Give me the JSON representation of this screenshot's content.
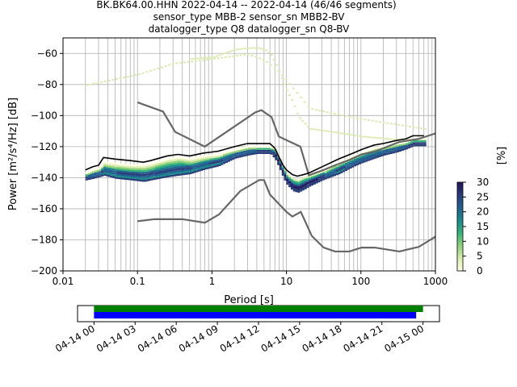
{
  "chart_data": [
    {
      "type": "heatmap",
      "title_lines": [
        "BK.BK64.00.HHN   2022-04-14 -- 2022-04-14  (46/46 segments)",
        "sensor_type MBB-2 sensor_sn MBB2-BV",
        "datalogger_type Q8 datalogger_sn Q8-BV"
      ],
      "xlabel": "Period [s]",
      "ylabel": "Power [m²/s⁴/Hz] [dB]",
      "x_scale": "log",
      "xlim": [
        0.01,
        1000
      ],
      "ylim": [
        -200,
        -50
      ],
      "x_ticks": [
        {
          "value": 0.01,
          "label": "0.01"
        },
        {
          "value": 0.1,
          "label": "0.1"
        },
        {
          "value": 1,
          "label": "1"
        },
        {
          "value": 10,
          "label": "10"
        },
        {
          "value": 100,
          "label": "100"
        },
        {
          "value": 1000,
          "label": "1000"
        }
      ],
      "y_ticks": [
        {
          "value": -200,
          "label": "−200"
        },
        {
          "value": -180,
          "label": "−180"
        },
        {
          "value": -160,
          "label": "−160"
        },
        {
          "value": -140,
          "label": "−140"
        },
        {
          "value": -120,
          "label": "−120"
        },
        {
          "value": -100,
          "label": "−100"
        },
        {
          "value": -80,
          "label": "−80"
        },
        {
          "value": -60,
          "label": "−60"
        }
      ],
      "grid": true,
      "colorbar": {
        "label": "[%]",
        "range": [
          0,
          30
        ],
        "ticks": [
          {
            "value": 0,
            "label": "0"
          },
          {
            "value": 5,
            "label": "5"
          },
          {
            "value": 10,
            "label": "10"
          },
          {
            "value": 15,
            "label": "15"
          },
          {
            "value": 20,
            "label": "20"
          },
          {
            "value": 25,
            "label": "25"
          },
          {
            "value": 30,
            "label": "30"
          }
        ],
        "colors": [
          "#ffffe5",
          "#d8ecb0",
          "#8fd17b",
          "#36b27b",
          "#1b8a8c",
          "#235f91",
          "#2a3c78",
          "#24135a"
        ]
      },
      "noise_models": {
        "color": "#666666",
        "high": {
          "x": [
            0.1,
            0.22,
            0.32,
            0.8,
            3.8,
            4.6,
            6.3,
            7.9,
            15.4,
            20,
            21.9,
            31.6,
            45,
            70,
            101,
            154,
            328,
            600,
            1000
          ],
          "y": [
            -91.5,
            -97.4,
            -110.5,
            -120,
            -98,
            -96.5,
            -101,
            -113.5,
            -120,
            -138.5,
            -137.7,
            -135,
            -132,
            -128.5,
            -125,
            -123.1,
            -117,
            -115,
            -111.5
          ]
        },
        "low": {
          "x": [
            0.1,
            0.17,
            0.4,
            0.8,
            1.24,
            2.4,
            4.3,
            5,
            6,
            10,
            12,
            15.6,
            21.9,
            31.6,
            45,
            70,
            101,
            154,
            328,
            600,
            1000
          ],
          "y": [
            -168,
            -166.7,
            -166.7,
            -169,
            -163.7,
            -148.6,
            -141.5,
            -141.5,
            -150.8,
            -162,
            -165,
            -162,
            -177.5,
            -185,
            -187.5,
            -187.5,
            -185,
            -185,
            -187.5,
            -184.5,
            -178
          ]
        }
      },
      "mean_curve": {
        "color": "#000000",
        "x": [
          0.02,
          0.025,
          0.03,
          0.035,
          0.05,
          0.08,
          0.12,
          0.15,
          0.25,
          0.35,
          0.5,
          0.8,
          1.2,
          2,
          3,
          4,
          5,
          6,
          7,
          8,
          9,
          10,
          12,
          14,
          17,
          20,
          30,
          50,
          80,
          100,
          150,
          200,
          300,
          400,
          500,
          700
        ],
        "y": [
          -135,
          -133,
          -132,
          -127,
          -128,
          -129,
          -130,
          -129,
          -126,
          -125,
          -126,
          -124,
          -123,
          -120,
          -118,
          -118,
          -118,
          -118,
          -121,
          -127,
          -132,
          -135,
          -138,
          -139,
          -138,
          -137,
          -133,
          -128,
          -124,
          -122,
          -119,
          -118,
          -116,
          -115,
          -113,
          -113
        ]
      },
      "psd_band": {
        "x": [
          0.02,
          0.025,
          0.03,
          0.035,
          0.05,
          0.08,
          0.12,
          0.15,
          0.25,
          0.35,
          0.5,
          0.8,
          1.2,
          2,
          3,
          4,
          5,
          6,
          7,
          8,
          9,
          10,
          12,
          14,
          17,
          20,
          30,
          50,
          80,
          100,
          150,
          200,
          300,
          400,
          500,
          700
        ],
        "upper": [
          -137,
          -135,
          -134,
          -130,
          -131,
          -132,
          -132,
          -131,
          -128,
          -127,
          -128,
          -126,
          -125,
          -122,
          -120,
          -120,
          -120,
          -120,
          -122,
          -128,
          -134,
          -138,
          -141,
          -142,
          -140,
          -139,
          -136,
          -130,
          -126,
          -124,
          -121,
          -120,
          -118,
          -117,
          -115,
          -115
        ],
        "lower": [
          -141,
          -140,
          -139,
          -138,
          -140,
          -141,
          -142,
          -141,
          -139,
          -138,
          -137,
          -134,
          -132,
          -127,
          -125,
          -124,
          -124,
          -124,
          -128,
          -134,
          -140,
          -144,
          -148,
          -149,
          -147,
          -145,
          -141,
          -137,
          -132,
          -130,
          -127,
          -125,
          -123,
          -121,
          -119,
          -119
        ]
      },
      "faint_curves": [
        {
          "x": [
            0.02,
            0.1,
            0.3,
            1,
            3,
            5,
            8,
            12,
            20,
            40,
            80,
            200,
            500,
            700
          ],
          "y": [
            -80,
            -73,
            -66,
            -63,
            -60,
            -64,
            -72,
            -82,
            -95,
            -98,
            -101,
            -104,
            -107,
            -108
          ]
        },
        {
          "x": [
            0.5,
            1,
            2,
            3,
            4,
            5,
            6,
            7,
            8,
            9,
            10,
            12,
            14,
            20,
            40,
            100,
            300,
            700
          ],
          "y": [
            -63,
            -62,
            -57,
            -56,
            -56,
            -57,
            -60,
            -66,
            -73,
            -79,
            -84,
            -91,
            -100,
            -108,
            -110,
            -113,
            -115,
            -115
          ]
        }
      ]
    },
    {
      "type": "bar",
      "title": "",
      "x_ticks": [
        {
          "value": "2022-04-14T00:00",
          "label": "04-14 00"
        },
        {
          "value": "2022-04-14T03:00",
          "label": "04-14 03"
        },
        {
          "value": "2022-04-14T06:00",
          "label": "04-14 06"
        },
        {
          "value": "2022-04-14T09:00",
          "label": "04-14 09"
        },
        {
          "value": "2022-04-14T12:00",
          "label": "04-14 12"
        },
        {
          "value": "2022-04-14T15:00",
          "label": "04-14 15"
        },
        {
          "value": "2022-04-14T18:00",
          "label": "04-14 18"
        },
        {
          "value": "2022-04-14T21:00",
          "label": "04-14 21"
        },
        {
          "value": "2022-04-15T00:00",
          "label": "04-15 00"
        }
      ],
      "xlim_hours": [
        -1.2,
        25.2
      ],
      "series": [
        {
          "color": "#008000",
          "start_hour": 0,
          "end_hour": 24.0
        },
        {
          "color": "#0000ff",
          "start_hour": 0,
          "end_hour": 23.5
        }
      ]
    }
  ]
}
